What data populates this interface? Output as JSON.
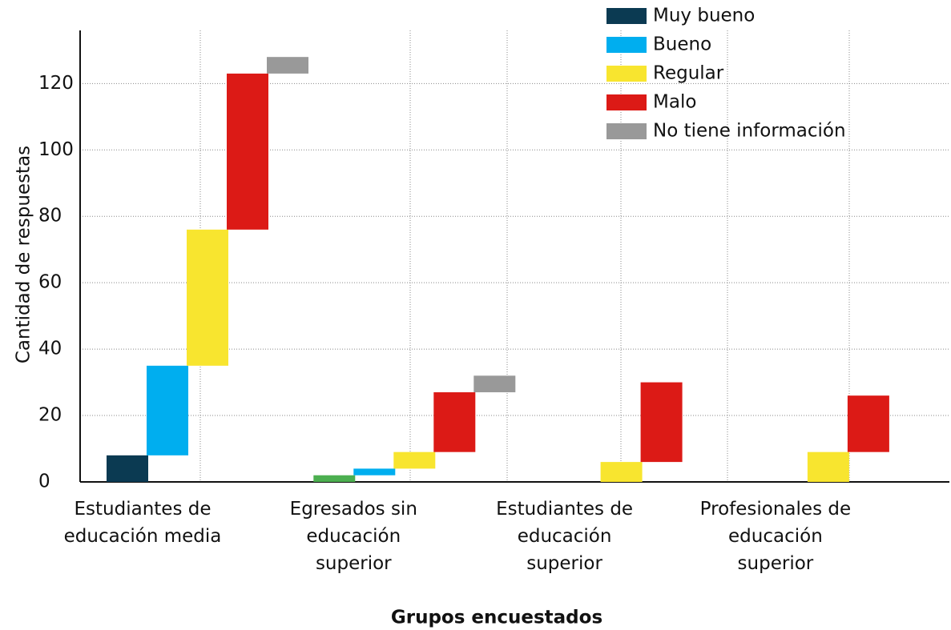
{
  "chart_data": {
    "type": "waterfall",
    "x_label": "Grupos encuestados",
    "y_label": "Cantidad de respuestas",
    "categories": [
      "Estudiantes de\neducación media",
      "Egresados sin\neducación\nsuperior",
      "Estudiantes de\neducación\nsuperior",
      "Profesionales de\neducación\nsuperior"
    ],
    "series": [
      {
        "name": "Muy bueno",
        "color": "#0b3a52",
        "colors": [
          "#0b3a52",
          "#4caf50",
          "#0b3a52",
          "#0b3a52"
        ],
        "values": [
          8,
          2,
          0,
          0
        ]
      },
      {
        "name": "Bueno",
        "color": "#00aeef",
        "values": [
          27,
          2,
          0,
          0
        ]
      },
      {
        "name": "Regular",
        "color": "#f8e52f",
        "values": [
          41,
          5,
          6,
          9
        ]
      },
      {
        "name": "Malo",
        "color": "#dc1a16",
        "values": [
          47,
          18,
          24,
          17
        ]
      },
      {
        "name": "No tiene información",
        "color": "#999999",
        "values": [
          5,
          5,
          0,
          0
        ]
      }
    ],
    "ylim": [
      0,
      136
    ],
    "yticks": [
      0,
      20,
      40,
      60,
      80,
      100,
      120
    ],
    "grid": true,
    "legend": "top-right"
  }
}
